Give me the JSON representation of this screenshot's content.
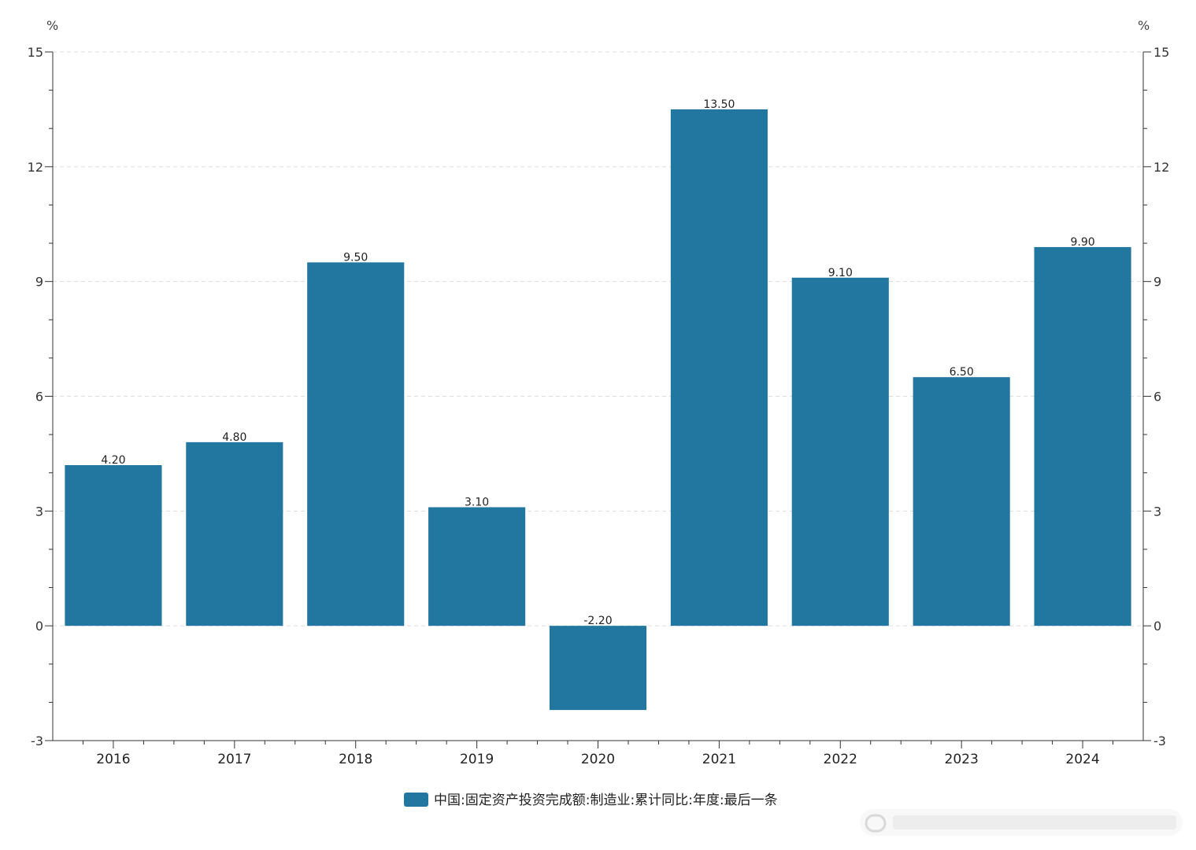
{
  "chart_data": {
    "type": "bar",
    "categories": [
      "2016",
      "2017",
      "2018",
      "2019",
      "2020",
      "2021",
      "2022",
      "2023",
      "2024"
    ],
    "series": [
      {
        "name": "中国:固定资产投资完成额:制造业:累计同比:年度:最后一条",
        "values": [
          4.2,
          4.8,
          9.5,
          3.1,
          -2.2,
          13.5,
          9.1,
          6.5,
          9.9
        ],
        "labels": [
          "4.20",
          "4.80",
          "9.50",
          "3.10",
          "-2.20",
          "13.50",
          "9.10",
          "6.50",
          "9.90"
        ]
      }
    ],
    "ylim": [
      -3,
      15
    ],
    "yticks": [
      -3,
      0,
      3,
      6,
      9,
      12,
      15
    ],
    "left_axis_unit": "%",
    "right_axis_unit": "%",
    "grid": true,
    "legend_position": "bottom-center",
    "colors": {
      "bar": "#21779f",
      "axis": "#333333",
      "grid": "#dddddd"
    }
  }
}
